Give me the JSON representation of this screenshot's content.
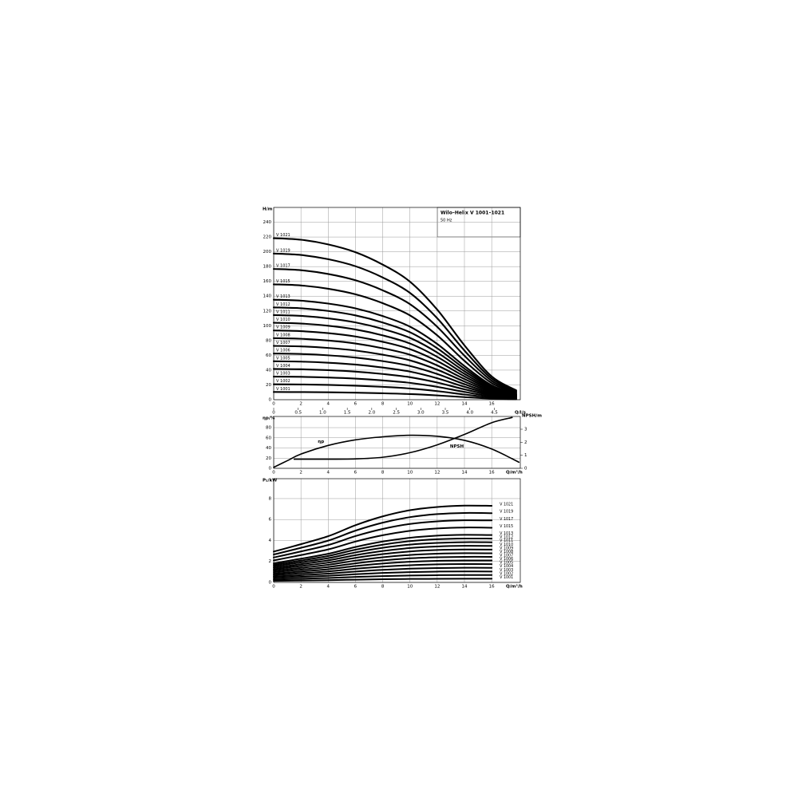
{
  "chart_data": [
    {
      "type": "line",
      "title": "Wilo–Helix V 1001–1021",
      "subtitle": "50 Hz",
      "y_label": "H/m",
      "x2_label": "Q/l/s",
      "color": "#000000",
      "grid": true,
      "xlim": [
        0,
        18.1
      ],
      "xticks": [
        0,
        2,
        4,
        6,
        8,
        10,
        12,
        14,
        16
      ],
      "x2lim": [
        0,
        5.03
      ],
      "x2ticks": [
        0,
        0.5,
        {
          "value": 1,
          "label": "1.0"
        },
        1.5,
        {
          "value": 2,
          "label": "2.0"
        },
        2.5,
        {
          "value": 3,
          "label": "3.0"
        },
        3.5,
        {
          "value": 4,
          "label": "4.0"
        },
        4.5
      ],
      "ylim": [
        0,
        260
      ],
      "yticks": [
        0,
        20,
        40,
        60,
        80,
        100,
        120,
        140,
        160,
        180,
        200,
        220,
        240
      ],
      "x": [
        0,
        2,
        4,
        6,
        8,
        10,
        12,
        14,
        16,
        17.8
      ],
      "series": [
        {
          "name": "V 1001",
          "values": [
            10.4,
            10.3,
            10.0,
            9.5,
            8.7,
            7.6,
            5.8,
            3.5,
            1.5,
            0.6
          ]
        },
        {
          "name": "V 1002",
          "values": [
            20.8,
            20.6,
            20,
            19,
            17.4,
            15.2,
            11.6,
            7,
            3,
            1.2
          ]
        },
        {
          "name": "V 1003",
          "values": [
            31.2,
            30.9,
            30,
            28.5,
            26.1,
            22.8,
            17.4,
            10.5,
            4.5,
            1.8
          ]
        },
        {
          "name": "V 1004",
          "values": [
            41.6,
            41.2,
            40,
            38,
            34.8,
            30.4,
            23.2,
            14,
            6,
            2.4
          ]
        },
        {
          "name": "V 1005",
          "values": [
            52,
            51.5,
            50,
            47.5,
            43.5,
            38,
            29,
            17.5,
            7.5,
            3
          ]
        },
        {
          "name": "V 1006",
          "values": [
            62.4,
            61.8,
            60,
            57,
            52.2,
            45.6,
            34.8,
            21,
            9,
            3.6
          ]
        },
        {
          "name": "V 1007",
          "values": [
            72.8,
            72.1,
            70,
            66.5,
            60.9,
            53.2,
            40.6,
            24.5,
            10.5,
            4.2
          ]
        },
        {
          "name": "V 1008",
          "values": [
            83.2,
            82.4,
            80,
            76,
            69.6,
            60.8,
            46.4,
            28,
            12,
            4.8
          ]
        },
        {
          "name": "V 1009",
          "values": [
            93.6,
            92.7,
            90,
            85.5,
            78.3,
            68.4,
            52.2,
            31.5,
            13.5,
            5.4
          ]
        },
        {
          "name": "V 1010",
          "values": [
            104,
            103,
            100,
            95,
            87,
            76,
            58,
            35,
            15,
            6
          ]
        },
        {
          "name": "V 1011",
          "values": [
            114.4,
            113.3,
            110,
            104.5,
            95.7,
            83.6,
            63.8,
            38.5,
            16.5,
            6.6
          ]
        },
        {
          "name": "V 1012",
          "values": [
            124.8,
            123.6,
            120,
            114,
            104.4,
            91.2,
            69.6,
            42,
            18,
            7.2
          ]
        },
        {
          "name": "V 1013",
          "values": [
            135.2,
            133.9,
            130,
            123.5,
            113.1,
            98.8,
            75.4,
            45.5,
            19.5,
            7.8
          ]
        },
        {
          "name": "V 1015",
          "values": [
            156,
            154.5,
            150,
            142.5,
            130.5,
            114,
            87,
            52.5,
            22.5,
            9
          ]
        },
        {
          "name": "V 1017",
          "values": [
            176.8,
            175.1,
            170,
            161.5,
            147.9,
            129.2,
            98.6,
            59.5,
            25.5,
            10.2
          ]
        },
        {
          "name": "V 1019",
          "values": [
            197.6,
            195.7,
            190,
            180.5,
            165.3,
            144.4,
            110.2,
            66.5,
            28.5,
            11.4
          ]
        },
        {
          "name": "V 1021",
          "values": [
            218.4,
            216.3,
            210,
            199.5,
            182.7,
            159.6,
            121.8,
            73.5,
            31.5,
            12.6
          ]
        }
      ]
    },
    {
      "type": "line",
      "y_label": "ηp/%",
      "y2_label": "NPSH/m",
      "x_label": "Q/m³/h",
      "color": "#000000",
      "grid": true,
      "xlim": [
        0,
        18.1
      ],
      "xticks": [
        0,
        2,
        4,
        6,
        8,
        10,
        12,
        14,
        16
      ],
      "ylim": [
        0,
        102
      ],
      "yticks": [
        0,
        20,
        40,
        60,
        80
      ],
      "y2lim": [
        0,
        3.98
      ],
      "y2ticks": [
        0,
        1,
        2,
        3
      ],
      "series": [
        {
          "name": "ηp",
          "x": [
            0,
            1,
            2,
            4,
            6,
            8,
            10,
            12,
            14,
            16,
            18
          ],
          "values": [
            2,
            15,
            28,
            45,
            56,
            62,
            65,
            63,
            55,
            38,
            12
          ]
        },
        {
          "name": "NPSH",
          "axis": "y2",
          "x": [
            1.5,
            4,
            6,
            8,
            10,
            12,
            14,
            16,
            17.5
          ],
          "values": [
            0.7,
            0.7,
            0.72,
            0.85,
            1.2,
            1.8,
            2.6,
            3.5,
            3.9
          ]
        }
      ]
    },
    {
      "type": "line",
      "y_label": "P₂/kW",
      "x_label": "Q/m³/h",
      "color": "#000000",
      "grid": true,
      "xlim": [
        0,
        18.1
      ],
      "xticks": [
        0,
        2,
        4,
        6,
        8,
        10,
        12,
        14,
        16
      ],
      "ylim": [
        0,
        9.9
      ],
      "yticks": [
        0,
        2,
        4,
        6,
        8
      ],
      "x": [
        0,
        1.5,
        4,
        6,
        8,
        10,
        12,
        14,
        16
      ],
      "series": [
        {
          "name": "V 1001",
          "values": [
            0.14,
            0.17,
            0.21,
            0.26,
            0.3,
            0.33,
            0.34,
            0.35,
            0.35
          ]
        },
        {
          "name": "V 1002",
          "values": [
            0.28,
            0.33,
            0.42,
            0.52,
            0.6,
            0.66,
            0.69,
            0.7,
            0.7
          ]
        },
        {
          "name": "V 1003",
          "values": [
            0.42,
            0.5,
            0.63,
            0.78,
            0.9,
            0.98,
            1.03,
            1.05,
            1.04
          ]
        },
        {
          "name": "V 1004",
          "values": [
            0.56,
            0.66,
            0.84,
            1.04,
            1.2,
            1.31,
            1.37,
            1.4,
            1.39
          ]
        },
        {
          "name": "V 1005",
          "values": [
            0.7,
            0.83,
            1.05,
            1.3,
            1.5,
            1.64,
            1.72,
            1.75,
            1.74
          ]
        },
        {
          "name": "V 1006",
          "values": [
            0.84,
            0.99,
            1.26,
            1.56,
            1.8,
            1.97,
            2.06,
            2.09,
            2.09
          ]
        },
        {
          "name": "V 1007",
          "values": [
            0.98,
            1.16,
            1.47,
            1.82,
            2.1,
            2.3,
            2.4,
            2.44,
            2.44
          ]
        },
        {
          "name": "V 1008",
          "values": [
            1.12,
            1.32,
            1.68,
            2.08,
            2.4,
            2.62,
            2.74,
            2.79,
            2.78
          ]
        },
        {
          "name": "V 1009",
          "values": [
            1.26,
            1.49,
            1.89,
            2.34,
            2.7,
            2.95,
            3.09,
            3.14,
            3.13
          ]
        },
        {
          "name": "V 1010",
          "values": [
            1.4,
            1.65,
            2.1,
            2.6,
            3.0,
            3.28,
            3.43,
            3.49,
            3.48
          ]
        },
        {
          "name": "V 1011",
          "values": [
            1.54,
            1.82,
            2.31,
            2.86,
            3.3,
            3.61,
            3.77,
            3.84,
            3.83
          ]
        },
        {
          "name": "V 1012",
          "values": [
            1.68,
            1.98,
            2.52,
            3.12,
            3.6,
            3.94,
            4.12,
            4.19,
            4.18
          ]
        },
        {
          "name": "V 1013",
          "values": [
            1.82,
            2.15,
            2.73,
            3.38,
            3.9,
            4.26,
            4.46,
            4.54,
            4.52
          ]
        },
        {
          "name": "V 1015",
          "values": [
            2.1,
            2.48,
            3.15,
            3.9,
            4.5,
            4.92,
            5.15,
            5.24,
            5.22
          ]
        },
        {
          "name": "V 1017",
          "values": [
            2.38,
            2.81,
            3.57,
            4.42,
            5.1,
            5.58,
            5.83,
            5.93,
            5.92
          ]
        },
        {
          "name": "V 1019",
          "values": [
            2.66,
            3.14,
            3.99,
            4.94,
            5.7,
            6.23,
            6.52,
            6.63,
            6.61
          ]
        },
        {
          "name": "V 1021",
          "values": [
            2.94,
            3.47,
            4.41,
            5.46,
            6.3,
            6.89,
            7.2,
            7.33,
            7.31
          ]
        }
      ]
    }
  ]
}
